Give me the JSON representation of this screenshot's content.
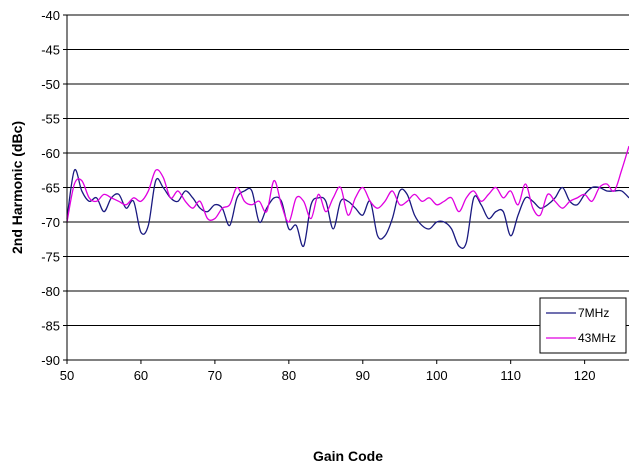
{
  "chart_data": {
    "type": "line",
    "title": "",
    "xlabel": "Gain Code",
    "ylabel": "2nd Harmonic (dBc)",
    "xlim": [
      50,
      126
    ],
    "ylim": [
      -90,
      -40
    ],
    "x_ticks": [
      50,
      60,
      70,
      80,
      90,
      100,
      110,
      120
    ],
    "y_ticks": [
      -40,
      -45,
      -50,
      -55,
      -60,
      -65,
      -70,
      -75,
      -80,
      -85,
      -90
    ],
    "grid": "horizontal",
    "legend_position": "bottom-right",
    "series": [
      {
        "name": "7MHz",
        "color": "#1a1a80",
        "x": [
          50,
          51,
          52,
          53,
          54,
          55,
          56,
          57,
          58,
          59,
          60,
          61,
          62,
          63,
          64,
          65,
          66,
          67,
          68,
          69,
          70,
          71,
          72,
          73,
          74,
          75,
          76,
          77,
          78,
          79,
          80,
          81,
          82,
          83,
          84,
          85,
          86,
          87,
          88,
          89,
          90,
          91,
          92,
          93,
          94,
          95,
          96,
          97,
          98,
          99,
          100,
          101,
          102,
          103,
          104,
          105,
          106,
          107,
          108,
          109,
          110,
          111,
          112,
          113,
          114,
          115,
          116,
          117,
          118,
          119,
          120,
          121,
          122,
          123,
          124,
          125,
          126
        ],
        "y": [
          -69.5,
          -62.5,
          -65.5,
          -67,
          -66.5,
          -68.5,
          -66.5,
          -66,
          -68,
          -67,
          -71.5,
          -70.5,
          -64,
          -65,
          -66.5,
          -67,
          -65.5,
          -66.5,
          -68,
          -68.5,
          -67.5,
          -68,
          -70.5,
          -66.5,
          -65.5,
          -65.5,
          -70,
          -68,
          -66.5,
          -67,
          -71,
          -70.5,
          -73.5,
          -67.5,
          -66.5,
          -67,
          -71,
          -67,
          -67,
          -68,
          -69,
          -67,
          -72,
          -72,
          -69.5,
          -65.5,
          -66,
          -69,
          -70.5,
          -71,
          -70,
          -70,
          -71,
          -73.5,
          -73,
          -66.5,
          -67.5,
          -69.5,
          -68.5,
          -68.5,
          -72,
          -69,
          -66.5,
          -67,
          -68,
          -67.5,
          -66.5,
          -65,
          -67,
          -67.5,
          -66,
          -65,
          -65,
          -65.5,
          -65.5,
          -65.5,
          -66.5
        ]
      },
      {
        "name": "43MHz",
        "color": "#e000e0",
        "x": [
          50,
          51,
          52,
          53,
          54,
          55,
          56,
          57,
          58,
          59,
          60,
          61,
          62,
          63,
          64,
          65,
          66,
          67,
          68,
          69,
          70,
          71,
          72,
          73,
          74,
          75,
          76,
          77,
          78,
          79,
          80,
          81,
          82,
          83,
          84,
          85,
          86,
          87,
          88,
          89,
          90,
          91,
          92,
          93,
          94,
          95,
          96,
          97,
          98,
          99,
          100,
          101,
          102,
          103,
          104,
          105,
          106,
          107,
          108,
          109,
          110,
          111,
          112,
          113,
          114,
          115,
          116,
          117,
          118,
          119,
          120,
          121,
          122,
          123,
          124,
          125,
          126
        ],
        "y": [
          -70,
          -64.5,
          -64,
          -66.5,
          -67,
          -66,
          -66.5,
          -67,
          -67.5,
          -66.5,
          -67,
          -65.5,
          -62.5,
          -63.5,
          -66.5,
          -65.5,
          -67,
          -68,
          -67,
          -69.5,
          -69.5,
          -68,
          -67.5,
          -65,
          -67,
          -67.5,
          -67,
          -68.5,
          -64,
          -67.5,
          -70,
          -66.5,
          -67,
          -69.5,
          -66,
          -68.5,
          -66.5,
          -65,
          -69,
          -66.5,
          -65,
          -67,
          -68,
          -67,
          -65.5,
          -67.5,
          -67,
          -66,
          -67,
          -66.5,
          -67.5,
          -67,
          -66.5,
          -68.5,
          -66.5,
          -65.5,
          -67,
          -66,
          -65,
          -66.5,
          -65.5,
          -67.5,
          -64.5,
          -68,
          -69,
          -66,
          -67,
          -68,
          -67,
          -66.5,
          -66,
          -67,
          -65,
          -64.5,
          -65.5,
          -62.5,
          -59
        ]
      }
    ]
  }
}
